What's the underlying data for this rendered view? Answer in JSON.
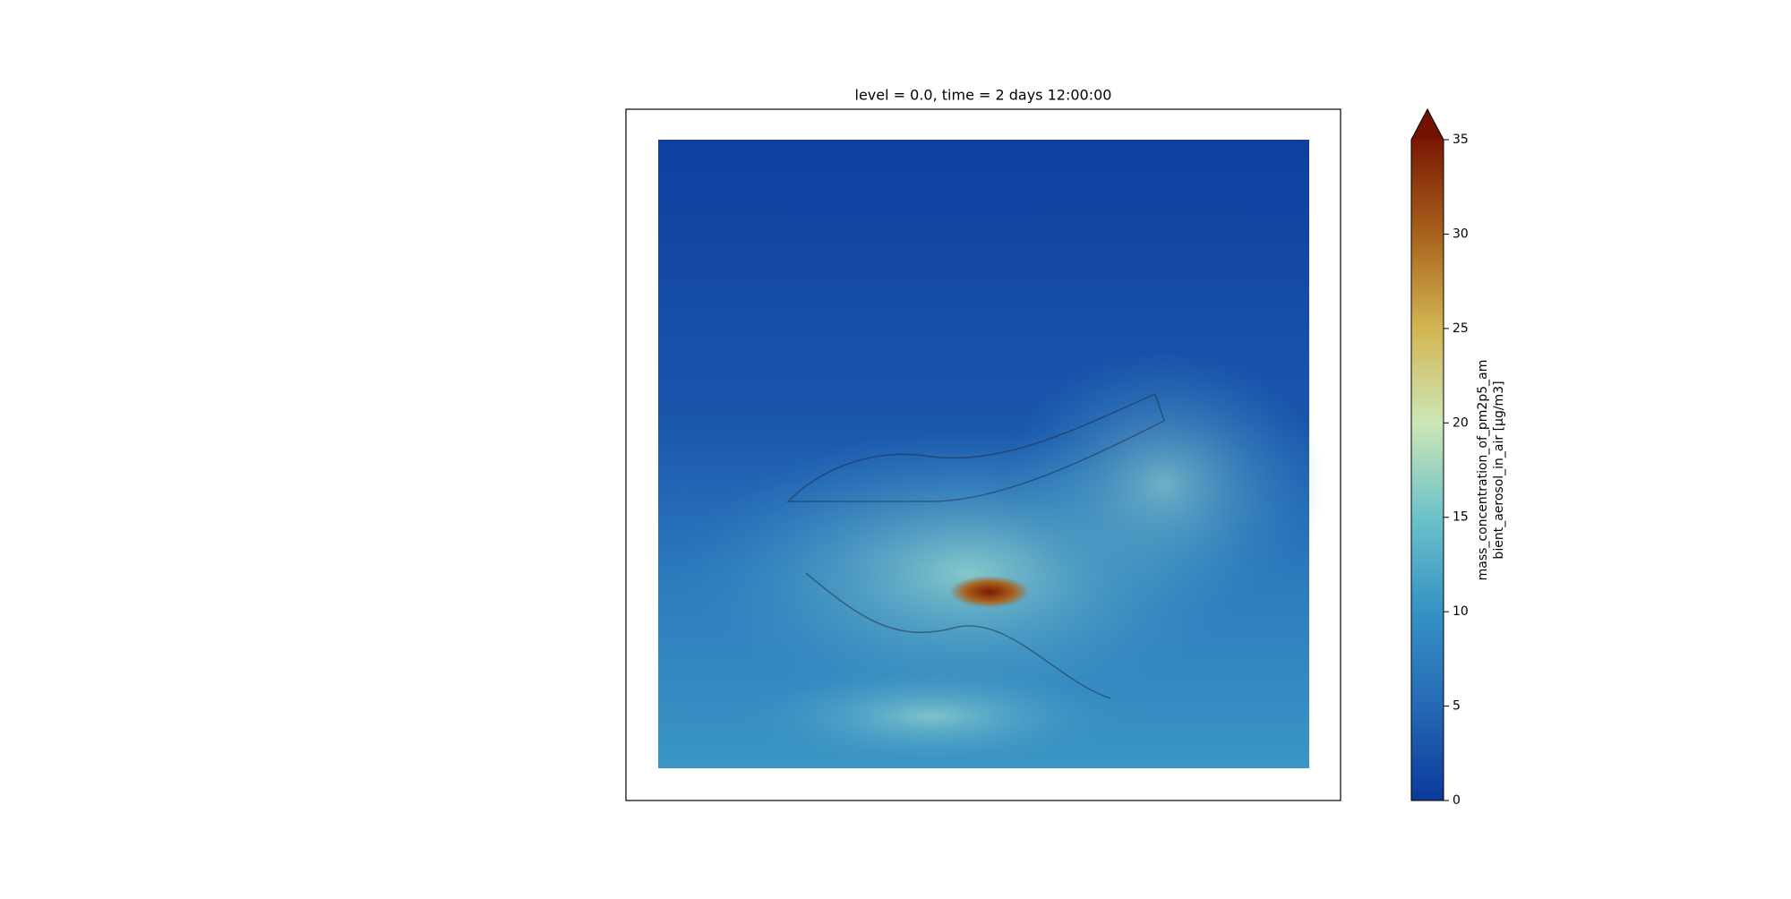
{
  "chart_data": {
    "type": "colormap",
    "title": "level = 0.0, time = 2 days 12:00:00",
    "colorbar": {
      "label_lines": [
        "mass_concentration_of_pm2p5_am",
        "bient_aerosol_in_air [µg/m3]"
      ],
      "clim": [
        0,
        35
      ],
      "ticks": [
        0,
        5,
        10,
        15,
        20,
        25,
        30,
        35
      ],
      "extend": "max",
      "colors": [
        "#0b3a9c",
        "#2569b5",
        "#3592c4",
        "#6cc2c9",
        "#cde6b6",
        "#d3b552",
        "#a8621c",
        "#7a1904"
      ],
      "extend_color": "#721300"
    }
  }
}
